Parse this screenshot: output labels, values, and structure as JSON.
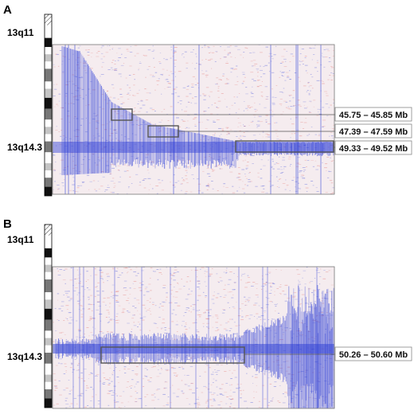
{
  "panels": [
    {
      "letter": "A",
      "band_top": "13q11",
      "band_mid": "13q14.3",
      "regions": [
        "45.75 – 45.85 Mb",
        "47.39 – 47.59 Mb",
        "49.33 – 49.52 Mb"
      ]
    },
    {
      "letter": "B",
      "band_top": "13q11",
      "band_mid": "13q14.3",
      "regions": [
        "50.26 – 50.60 Mb"
      ]
    }
  ],
  "colors": {
    "loss": "#2e3fd6",
    "gain": "#e0645f",
    "box": "#555555",
    "ideogram_dark": "#111111",
    "ideogram_mid": "#777777",
    "ideogram_light": "#c4c4c4"
  }
}
